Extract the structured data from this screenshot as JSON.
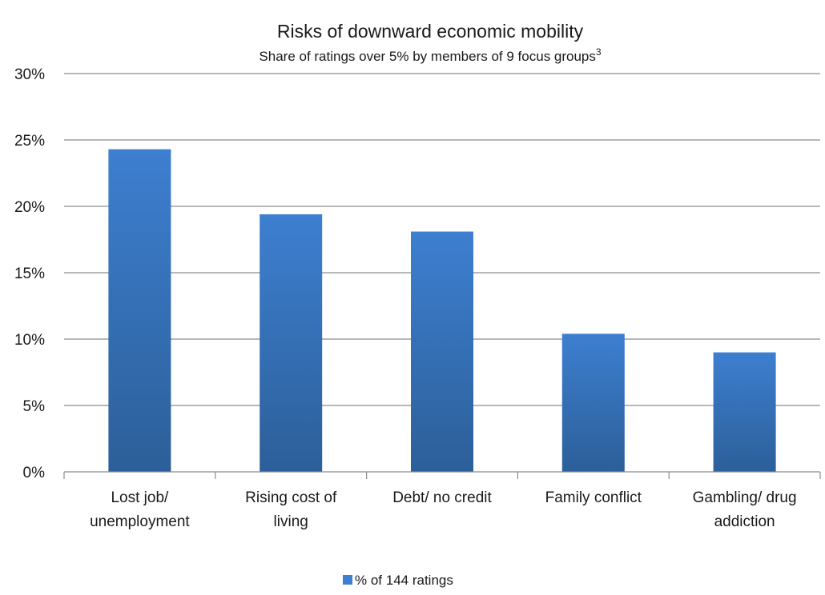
{
  "chart_data": {
    "type": "bar",
    "title": "Risks of downward economic mobility",
    "subtitle": "Share of ratings over 5% by members of 9 focus groups",
    "subtitle_superscript": "3",
    "categories": [
      [
        "Lost job/",
        "unemployment"
      ],
      [
        "Rising cost of",
        "living"
      ],
      [
        "Debt/ no credit"
      ],
      [
        "Family conflict"
      ],
      [
        "Gambling/ drug",
        "addiction"
      ]
    ],
    "series": [
      {
        "name": "% of 144 ratings",
        "values": [
          24.3,
          19.4,
          18.1,
          10.4,
          9.0
        ]
      }
    ],
    "ylim": [
      0,
      30
    ],
    "yticks": [
      0,
      5,
      10,
      15,
      20,
      25,
      30
    ],
    "ytick_format": "percent",
    "grid": true,
    "legend": "bottom",
    "colors": {
      "bar_top": "#3d7fd0",
      "bar_bottom": "#2c5f99",
      "grid": "#8c8c8c",
      "axis": "#8c8c8c"
    }
  }
}
